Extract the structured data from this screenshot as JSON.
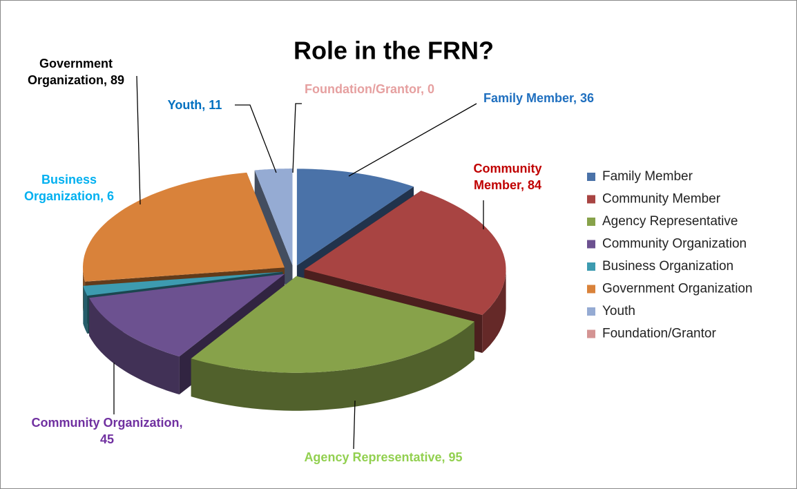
{
  "chart_data": {
    "type": "pie",
    "title": "Role in the FRN?",
    "categories": [
      "Family Member",
      "Community Member",
      "Agency Representative",
      "Community Organization",
      "Business Organization",
      "Government Organization",
      "Youth",
      "Foundation/Grantor"
    ],
    "values": [
      36,
      84,
      95,
      45,
      6,
      89,
      11,
      0
    ],
    "value_labels": [
      "Family Member, 36",
      "Community Member, 84",
      "Agency Representative, 95",
      "Community Organization, 45",
      "Business Organization, 6",
      "Government Organization, 89",
      "Youth, 11",
      "Foundation/Grantor, 0"
    ],
    "colors": [
      "#4a72a8",
      "#a84442",
      "#87a24a",
      "#6c5190",
      "#3d9bb0",
      "#d9823a",
      "#95abd3",
      "#d49493"
    ],
    "label_colors": [
      "#1f6fbf",
      "#c00000",
      "#92d050",
      "#7030a0",
      "#00b0f0",
      "#000000",
      "#0070c0",
      "#e6a0a0"
    ],
    "legend": "right"
  }
}
